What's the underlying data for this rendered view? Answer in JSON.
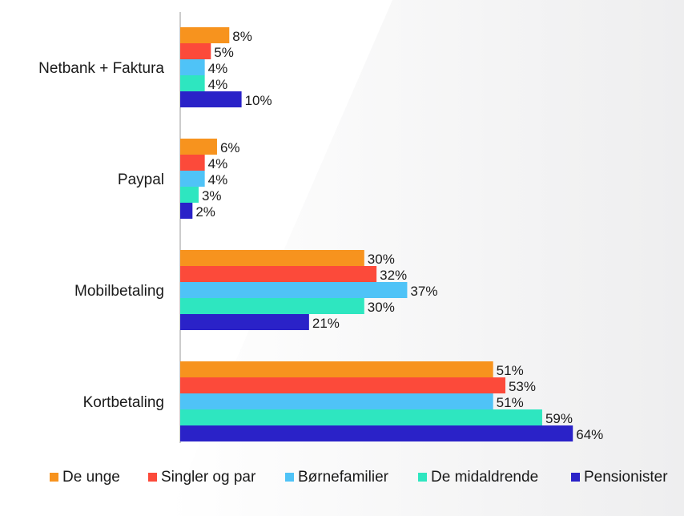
{
  "chart_data": {
    "type": "bar",
    "orientation": "horizontal",
    "title": "",
    "xlabel": "",
    "ylabel": "",
    "xlim": [
      0,
      70
    ],
    "grid": false,
    "legend_position": "bottom",
    "value_suffix": "%",
    "categories": [
      "Netbank + Faktura",
      "Paypal",
      "Mobilbetaling",
      "Kortbetaling"
    ],
    "series": [
      {
        "name": "De unge",
        "color": "#f7931e",
        "values": [
          8,
          6,
          30,
          51
        ]
      },
      {
        "name": "Singler og par",
        "color": "#fc4a3a",
        "values": [
          5,
          4,
          32,
          53
        ]
      },
      {
        "name": "Børnefamilier",
        "color": "#4fc3f7",
        "values": [
          4,
          4,
          37,
          51
        ]
      },
      {
        "name": "De midaldrende",
        "color": "#2ee6c0",
        "values": [
          4,
          3,
          30,
          59
        ]
      },
      {
        "name": "Pensionister",
        "color": "#2a22c8",
        "values": [
          10,
          2,
          21,
          64
        ]
      }
    ]
  }
}
